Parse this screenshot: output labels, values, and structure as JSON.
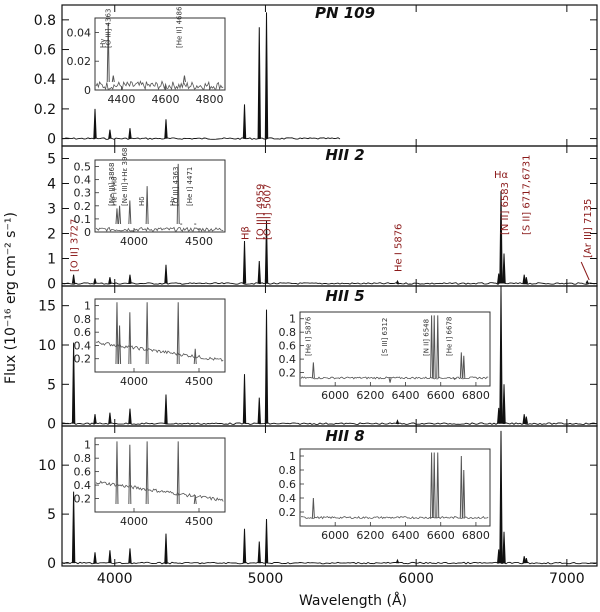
{
  "chart_data": {
    "type": "line",
    "xlabel": "Wavelength (Å)",
    "ylabel": "Flux (10⁻¹⁶ erg cm⁻² s⁻¹)",
    "xlim": [
      3650,
      7200
    ],
    "xticks": [
      4000,
      5000,
      6000,
      7000
    ],
    "xtick_labels": [
      "4000",
      "5000",
      "6000",
      "7000"
    ],
    "panels": [
      {
        "title": "PN 109",
        "ylim": [
          -0.05,
          0.9
        ],
        "yticks": [
          0,
          0.2,
          0.4,
          0.6,
          0.8
        ],
        "ytick_labels": [
          "0",
          "0.2",
          "0.4",
          "0.6",
          "0.8"
        ],
        "x_end": 5500,
        "lines": [
          [
            3869,
            0.2
          ],
          [
            3968,
            0.06
          ],
          [
            4101,
            0.07
          ],
          [
            4340,
            0.13
          ],
          [
            4861,
            0.23
          ],
          [
            4959,
            0.75
          ],
          [
            5007,
            0.85
          ]
        ],
        "labels": [],
        "insets": [
          {
            "xlim": [
              4280,
              4870
            ],
            "ylim": [
              0,
              0.05
            ],
            "xticks": [
              4400,
              4600,
              4800
            ],
            "xtick_labels": [
              "4400",
              "4600",
              "4800"
            ],
            "yticks": [
              0,
              0.02,
              0.04
            ],
            "ytick_labels": [
              "0",
              "0.02",
              "0.04"
            ],
            "lines": [
              [
                4340,
                0.046
              ],
              [
                4363,
                0.01
              ],
              [
                4686,
                0.01
              ]
            ],
            "labels": [
              "Hγ",
              "[O III] 4363",
              "[He II] 4686"
            ]
          }
        ]
      },
      {
        "title": "HII 2",
        "ylim": [
          -0.1,
          5.5
        ],
        "yticks": [
          0,
          1,
          2,
          3,
          4,
          5
        ],
        "ytick_labels": [
          "0",
          "1",
          "2",
          "3",
          "4",
          "5"
        ],
        "x_end": 7200,
        "lines": [
          [
            3727,
            0.35
          ],
          [
            3869,
            0.2
          ],
          [
            3968,
            0.25
          ],
          [
            4101,
            0.35
          ],
          [
            4340,
            0.75
          ],
          [
            4861,
            1.7
          ],
          [
            4959,
            0.9
          ],
          [
            5007,
            2.5
          ],
          [
            5876,
            0.1
          ],
          [
            6548,
            0.4
          ],
          [
            6563,
            3.7
          ],
          [
            6583,
            1.2
          ],
          [
            6717,
            0.35
          ],
          [
            6731,
            0.25
          ],
          [
            7135,
            0.1
          ]
        ],
        "labels": [
          "[O II] 3727",
          "Hβ",
          "[O III] 4959",
          "[O III] 5007",
          "He I 5876",
          "Hα",
          "[N II] 6583",
          "[S II] 6717,6731",
          "[Ar III] 7135"
        ],
        "insets": [
          {
            "xlim": [
              3700,
              4700
            ],
            "ylim": [
              0,
              0.55
            ],
            "xticks": [
              4000,
              4500
            ],
            "xtick_labels": [
              "4000",
              "4500"
            ],
            "yticks": [
              0,
              0.1,
              0.2,
              0.3,
              0.4,
              0.5
            ],
            "ytick_labels": [
              "0",
              "0.1",
              "0.2",
              "0.3",
              "0.4",
              "0.5"
            ],
            "lines": [
              [
                3869,
                0.18
              ],
              [
                3889,
                0.2
              ],
              [
                3968,
                0.24
              ],
              [
                4101,
                0.35
              ],
              [
                4340,
                0.52
              ],
              [
                4363,
                0.06
              ],
              [
                4471,
                0.06
              ]
            ],
            "labels": [
              "[Ne III] 3868",
              "He I+H8",
              "[Ne III]+Hε 3968",
              "Hδ",
              "Hγ",
              "[O III] 4363",
              "[He I] 4471"
            ]
          }
        ]
      },
      {
        "title": "HII 5",
        "ylim": [
          -0.3,
          17.5
        ],
        "yticks": [
          0,
          5,
          10,
          15
        ],
        "ytick_labels": [
          "0",
          "5",
          "10",
          "15"
        ],
        "x_end": 7200,
        "lines": [
          [
            3727,
            10.3
          ],
          [
            3869,
            1.2
          ],
          [
            3968,
            1.4
          ],
          [
            4101,
            1.9
          ],
          [
            4340,
            3.7
          ],
          [
            4861,
            6.3
          ],
          [
            4959,
            3.3
          ],
          [
            5007,
            14.5
          ],
          [
            5876,
            0.4
          ],
          [
            6548,
            2
          ],
          [
            6563,
            17.5
          ],
          [
            6583,
            5
          ],
          [
            6717,
            1.2
          ],
          [
            6731,
            0.9
          ]
        ],
        "labels": [],
        "insets": [
          {
            "xlim": [
              3700,
              4700
            ],
            "ylim": [
              0,
              1.1
            ],
            "xticks": [
              4000,
              4500
            ],
            "xtick_labels": [
              "4000",
              "4500"
            ],
            "yticks": [
              0.2,
              0.4,
              0.6,
              0.8,
              1
            ],
            "ytick_labels": [
              "0.2",
              "0.4",
              "0.6",
              "0.8",
              "1"
            ],
            "lines": [
              [
                3869,
                1.05
              ],
              [
                3889,
                0.7
              ],
              [
                3968,
                0.9
              ],
              [
                4101,
                1.05
              ],
              [
                4340,
                1.05
              ],
              [
                4471,
                0.35
              ]
            ],
            "labels": []
          },
          {
            "xlim": [
              5800,
              6880
            ],
            "ylim": [
              0,
              1.1
            ],
            "xticks": [
              6000,
              6200,
              6400,
              6600,
              6800
            ],
            "xtick_labels": [
              "6000",
              "6200",
              "6400",
              "6600",
              "6800"
            ],
            "yticks": [
              0.2,
              0.4,
              0.6,
              0.8,
              1
            ],
            "ytick_labels": [
              "0.2",
              "0.4",
              "0.6",
              "0.8",
              "1"
            ],
            "lines": [
              [
                5876,
                0.35
              ],
              [
                6312,
                0.05
              ],
              [
                6548,
                1.05
              ],
              [
                6563,
                1.05
              ],
              [
                6583,
                1.05
              ],
              [
                6678,
                0.1
              ],
              [
                6717,
                0.5
              ],
              [
                6731,
                0.45
              ]
            ],
            "labels": [
              "[He I] 5876",
              "[S III] 6312",
              "[N II] 6548",
              "[He I] 6678"
            ]
          }
        ]
      },
      {
        "title": "HII 8",
        "ylim": [
          -0.3,
          14
        ],
        "yticks": [
          0,
          5,
          10
        ],
        "ytick_labels": [
          "0",
          "5",
          "10"
        ],
        "x_end": 7200,
        "lines": [
          [
            3727,
            7.3
          ],
          [
            3869,
            1.1
          ],
          [
            3968,
            1.3
          ],
          [
            4101,
            1.5
          ],
          [
            4340,
            3
          ],
          [
            4861,
            3.5
          ],
          [
            4959,
            2.2
          ],
          [
            5007,
            4.5
          ],
          [
            5876,
            0.3
          ],
          [
            6548,
            1.4
          ],
          [
            6563,
            13.5
          ],
          [
            6583,
            3.2
          ],
          [
            6717,
            0.7
          ],
          [
            6731,
            0.5
          ]
        ],
        "labels": [],
        "insets": [
          {
            "xlim": [
              3700,
              4700
            ],
            "ylim": [
              0,
              1.1
            ],
            "xticks": [
              4000,
              4500
            ],
            "xtick_labels": [
              "4000",
              "4500"
            ],
            "yticks": [
              0.2,
              0.4,
              0.6,
              0.8,
              1
            ],
            "ytick_labels": [
              "0.2",
              "0.4",
              "0.6",
              "0.8",
              "1"
            ],
            "lines": [
              [
                3869,
                1.05
              ],
              [
                3968,
                1.0
              ],
              [
                4101,
                1.05
              ],
              [
                4340,
                1.05
              ],
              [
                4471,
                0.25
              ]
            ],
            "labels": []
          },
          {
            "xlim": [
              5800,
              6880
            ],
            "ylim": [
              0,
              1.1
            ],
            "xticks": [
              6000,
              6200,
              6400,
              6600,
              6800
            ],
            "xtick_labels": [
              "6000",
              "6200",
              "6400",
              "6600",
              "6800"
            ],
            "yticks": [
              0.2,
              0.4,
              0.6,
              0.8,
              1
            ],
            "ytick_labels": [
              "0.2",
              "0.4",
              "0.6",
              "0.8",
              "1"
            ],
            "lines": [
              [
                5876,
                0.4
              ],
              [
                6548,
                1.05
              ],
              [
                6563,
                1.05
              ],
              [
                6583,
                1.05
              ],
              [
                6717,
                1.0
              ],
              [
                6731,
                0.8
              ]
            ],
            "labels": []
          }
        ]
      }
    ]
  }
}
